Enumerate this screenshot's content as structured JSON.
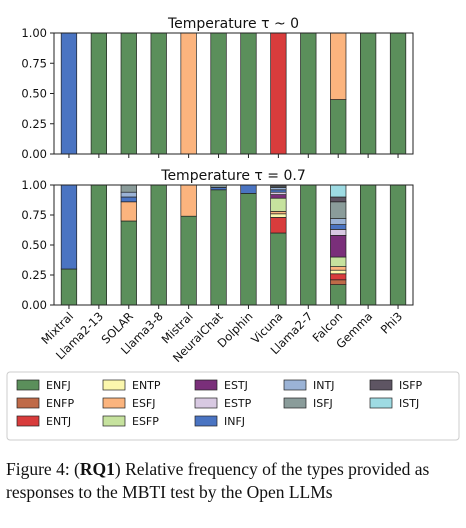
{
  "chart_data": [
    {
      "type": "bar",
      "stacked": true,
      "title": "Temperature τ ~ 0",
      "categories": [
        "Mixtral",
        "Llama2-13",
        "SOLAR",
        "Llama3-8",
        "Mistral",
        "NeuralChat",
        "Dolphin",
        "Vicuna",
        "Llama2-7",
        "Falcon",
        "Gemma",
        "Phi3"
      ],
      "ylim": [
        0,
        1
      ],
      "yticks": [
        "0.00",
        "0.25",
        "0.50",
        "0.75",
        "1.00"
      ],
      "show_xticklabels": false,
      "series": [
        {
          "name": "ENFJ",
          "values": [
            0,
            1,
            1,
            1,
            0,
            1,
            1,
            0,
            1,
            0.45,
            1,
            1
          ]
        },
        {
          "name": "ESFJ",
          "values": [
            0,
            0,
            0,
            0,
            1,
            0,
            0,
            0,
            0,
            0.55,
            0,
            0
          ]
        },
        {
          "name": "ENTJ",
          "values": [
            0,
            0,
            0,
            0,
            0,
            0,
            0,
            1,
            0,
            0,
            0,
            0
          ]
        },
        {
          "name": "INFJ",
          "values": [
            1,
            0,
            0,
            0,
            0,
            0,
            0,
            0,
            0,
            0,
            0,
            0
          ]
        }
      ]
    },
    {
      "type": "bar",
      "stacked": true,
      "title": "Temperature τ = 0.7",
      "categories": [
        "Mixtral",
        "Llama2-13",
        "SOLAR",
        "Llama3-8",
        "Mistral",
        "NeuralChat",
        "Dolphin",
        "Vicuna",
        "Llama2-7",
        "Falcon",
        "Gemma",
        "Phi3"
      ],
      "ylim": [
        0,
        1
      ],
      "yticks": [
        "0.00",
        "0.25",
        "0.50",
        "0.75",
        "1.00"
      ],
      "show_xticklabels": true,
      "series": [
        {
          "name": "ENFJ",
          "values": [
            0.3,
            1,
            0.7,
            1,
            0.74,
            0.96,
            0.93,
            0.6,
            1,
            0.17,
            1,
            1
          ]
        },
        {
          "name": "ENFP",
          "values": [
            0,
            0,
            0,
            0,
            0,
            0,
            0,
            0,
            0,
            0.04,
            0,
            0
          ]
        },
        {
          "name": "ENTJ",
          "values": [
            0,
            0,
            0,
            0,
            0,
            0,
            0,
            0.13,
            0,
            0.05,
            0,
            0
          ]
        },
        {
          "name": "ENTP",
          "values": [
            0,
            0,
            0,
            0,
            0,
            0,
            0,
            0.03,
            0,
            0.03,
            0,
            0
          ]
        },
        {
          "name": "ESFJ",
          "values": [
            0,
            0,
            0.16,
            0,
            0.26,
            0,
            0,
            0.02,
            0,
            0.03,
            0,
            0
          ]
        },
        {
          "name": "ESFP",
          "values": [
            0,
            0,
            0,
            0,
            0,
            0,
            0,
            0.11,
            0,
            0.08,
            0,
            0
          ]
        },
        {
          "name": "ESTJ",
          "values": [
            0,
            0,
            0,
            0,
            0,
            0,
            0,
            0.03,
            0,
            0.18,
            0,
            0
          ]
        },
        {
          "name": "ESTP",
          "values": [
            0,
            0,
            0,
            0,
            0,
            0,
            0,
            0.02,
            0,
            0.05,
            0,
            0
          ]
        },
        {
          "name": "INFJ",
          "values": [
            0.7,
            0,
            0.04,
            0,
            0,
            0.02,
            0.07,
            0.02,
            0,
            0.04,
            0,
            0
          ]
        },
        {
          "name": "INTJ",
          "values": [
            0,
            0,
            0.04,
            0,
            0,
            0,
            0,
            0.02,
            0,
            0.05,
            0,
            0
          ]
        },
        {
          "name": "ISFJ",
          "values": [
            0,
            0,
            0.06,
            0,
            0,
            0.02,
            0,
            0.01,
            0,
            0.14,
            0,
            0
          ]
        },
        {
          "name": "ISFP",
          "values": [
            0,
            0,
            0,
            0,
            0,
            0,
            0,
            0.01,
            0,
            0.04,
            0,
            0
          ]
        },
        {
          "name": "ISTJ",
          "values": [
            0,
            0,
            0,
            0,
            0,
            0,
            0,
            0,
            0,
            0.1,
            0,
            0
          ]
        }
      ]
    }
  ],
  "legend": [
    {
      "name": "ENFJ",
      "color": "#5b8f5b"
    },
    {
      "name": "ENTP",
      "color": "#fbf7ad"
    },
    {
      "name": "ESTJ",
      "color": "#7a2f7a"
    },
    {
      "name": "INTJ",
      "color": "#9bb3d6"
    },
    {
      "name": "ISFP",
      "color": "#5e5563"
    },
    {
      "name": "ENFP",
      "color": "#bf6a48"
    },
    {
      "name": "ESFJ",
      "color": "#fbb47e"
    },
    {
      "name": "ESTP",
      "color": "#d8c9e2"
    },
    {
      "name": "ISFJ",
      "color": "#8a9c9a"
    },
    {
      "name": "ISTJ",
      "color": "#9edbe3"
    },
    {
      "name": "ENTJ",
      "color": "#d83c3c"
    },
    {
      "name": "ESFP",
      "color": "#c6e29e"
    },
    {
      "name": "INFJ",
      "color": "#4a74c2"
    }
  ],
  "caption": {
    "label": "Figure 4: (",
    "bold": "RQ1",
    "text": ") Relative frequency of the types provided as responses to the MBTI test by the Open LLMs"
  }
}
